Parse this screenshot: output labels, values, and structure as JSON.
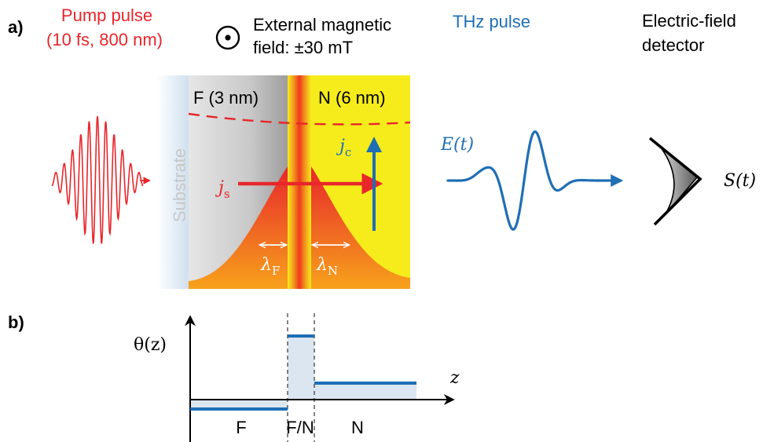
{
  "panel_a": {
    "label": "a)",
    "pump": {
      "title": "Pump pulse",
      "subtitle": "(10 fs, 800 nm)"
    },
    "field": {
      "line1": "External magnetic",
      "line2": "field: ±30 mT"
    },
    "thz": {
      "title": "THz pulse",
      "field_symbol": "E(t)"
    },
    "detector": {
      "line1": "Electric-field",
      "line2": "detector",
      "signal": "S(t)"
    },
    "substrate_label": "Substrate",
    "layer_f": "F (3 nm)",
    "layer_n": "N (6 nm)",
    "js": {
      "base": "j",
      "sub": "s"
    },
    "jc": {
      "base": "j",
      "sub": "c"
    },
    "lambda_f": {
      "base": "λ",
      "sub": "F"
    },
    "lambda_n": {
      "base": "λ",
      "sub": "N"
    }
  },
  "panel_b": {
    "label": "b)",
    "y_axis_label": "θ(z)",
    "x_axis_label": "z",
    "region_f": "F",
    "region_fn": "F/N",
    "region_n": "N"
  },
  "colors": {
    "pump_red": "#e8262b",
    "thz_blue": "#1f6fb5",
    "n_yellow": "#f6ec1b",
    "interface_orange": "#f0661c",
    "substrate_blue": "#dbe7f2",
    "profile_fill": "#dbe6f1"
  }
}
